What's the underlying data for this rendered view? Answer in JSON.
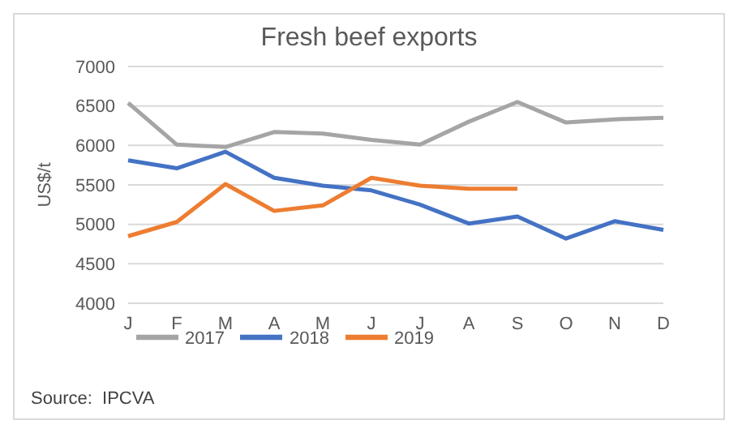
{
  "chart_data": {
    "type": "line",
    "title": "Fresh beef exports",
    "ylabel": "US$/t",
    "categories": [
      "J",
      "F",
      "M",
      "A",
      "M",
      "J",
      "J",
      "A",
      "S",
      "O",
      "N",
      "D"
    ],
    "series": [
      {
        "name": "2018",
        "color": "#4472c4",
        "values": [
          5810,
          5710,
          5920,
          5590,
          5490,
          5430,
          5250,
          5010,
          5100,
          4820,
          5040,
          4930
        ]
      },
      {
        "name": "2019",
        "color": "#ed7d31",
        "values": [
          4850,
          5030,
          5510,
          5170,
          5240,
          5590,
          5490,
          5450,
          5450,
          null,
          null,
          null
        ]
      },
      {
        "name": "2017",
        "color": "#a5a5a5",
        "values": [
          6540,
          6010,
          5980,
          6170,
          6150,
          6070,
          6010,
          6300,
          6550,
          6290,
          6330,
          6350
        ]
      }
    ],
    "ylim": [
      4000,
      7000
    ],
    "yticks": [
      4000,
      4500,
      5000,
      5500,
      6000,
      6500,
      7000
    ],
    "grid": "y",
    "legend": "bottom left",
    "marker": "none",
    "line_style": "solid",
    "annotations": [
      "Source:  IPCVA"
    ]
  }
}
